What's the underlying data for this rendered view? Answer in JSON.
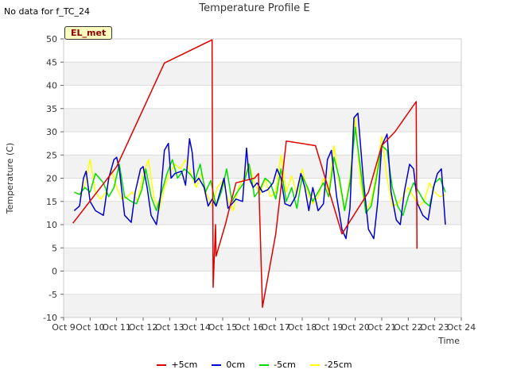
{
  "corner_note": "No data for f_TC_24",
  "site_badge": "EL_met",
  "chart_data": {
    "type": "line",
    "title": "Temperature Profile E",
    "xlabel": "Time",
    "ylabel": "Temperature (C)",
    "xlim": [
      9,
      24
    ],
    "ylim": [
      -10,
      50
    ],
    "x_ticks": [
      9,
      10,
      11,
      12,
      13,
      14,
      15,
      16,
      17,
      18,
      19,
      20,
      21,
      22,
      23,
      24
    ],
    "x_tick_labels": [
      "Oct 9",
      "Oct 10",
      "Oct 11",
      "Oct 12",
      "Oct 13",
      "Oct 14",
      "Oct 15",
      "Oct 16",
      "Oct 17",
      "Oct 18",
      "Oct 19",
      "Oct 20",
      "Oct 21",
      "Oct 22",
      "Oct 23",
      "Oct 24"
    ],
    "y_ticks": [
      -10,
      -5,
      0,
      5,
      10,
      15,
      20,
      25,
      30,
      35,
      40,
      45,
      50
    ],
    "grid": "horizontal bands",
    "legend_position": "bottom",
    "series": [
      {
        "name": "+5cm",
        "color": "#e00000",
        "x": [
          9.35,
          11.0,
          12.8,
          14.6,
          14.61,
          14.63,
          14.64,
          14.73,
          14.75,
          15.1,
          15.5,
          16.2,
          16.35,
          16.5,
          17.0,
          17.4,
          18.5,
          19.5,
          20.5,
          21.0,
          21.5,
          22.3,
          22.33
        ],
        "y": [
          10.3,
          22.5,
          44.8,
          49.8,
          30.0,
          10.0,
          -3.5,
          10.0,
          3.2,
          10.0,
          19.0,
          20.0,
          21.0,
          -7.8,
          8.0,
          28.0,
          27.0,
          8.0,
          17.0,
          27.0,
          30.0,
          36.5,
          4.8
        ]
      },
      {
        "name": "0cm",
        "color": "#0000cc",
        "x": [
          9.4,
          9.6,
          9.75,
          9.85,
          10.0,
          10.2,
          10.5,
          10.7,
          10.9,
          11.0,
          11.1,
          11.3,
          11.55,
          11.7,
          11.9,
          12.0,
          12.15,
          12.3,
          12.5,
          12.65,
          12.8,
          12.95,
          13.05,
          13.2,
          13.45,
          13.6,
          13.75,
          13.85,
          13.95,
          14.1,
          14.3,
          14.45,
          14.6,
          14.75,
          14.9,
          15.05,
          15.2,
          15.35,
          15.5,
          15.75,
          15.9,
          16.0,
          16.15,
          16.3,
          16.5,
          16.7,
          16.9,
          17.05,
          17.2,
          17.35,
          17.55,
          17.75,
          17.95,
          18.1,
          18.25,
          18.4,
          18.6,
          18.8,
          18.95,
          19.1,
          19.3,
          19.5,
          19.65,
          19.8,
          19.95,
          20.1,
          20.3,
          20.5,
          20.7,
          20.85,
          21.0,
          21.2,
          21.35,
          21.55,
          21.7,
          21.85,
          22.05,
          22.2,
          22.35,
          22.55,
          22.75,
          22.95,
          23.1,
          23.25,
          23.4
        ],
        "y": [
          13.0,
          14.0,
          20.0,
          21.5,
          15.0,
          13.0,
          12.0,
          20.0,
          24.0,
          24.5,
          22.0,
          12.0,
          10.5,
          17.0,
          22.0,
          22.5,
          18.0,
          12.0,
          10.0,
          16.0,
          26.0,
          27.5,
          20.0,
          21.0,
          21.5,
          18.5,
          28.5,
          25.5,
          19.0,
          20.0,
          18.0,
          14.0,
          15.5,
          14.0,
          17.0,
          20.0,
          13.5,
          14.5,
          15.5,
          15.0,
          26.5,
          20.0,
          18.0,
          19.0,
          17.0,
          17.5,
          19.0,
          22.0,
          20.0,
          14.5,
          14.0,
          16.0,
          21.0,
          18.0,
          13.0,
          18.0,
          13.0,
          14.5,
          24.0,
          26.0,
          16.0,
          9.0,
          7.0,
          13.5,
          33.0,
          34.0,
          20.0,
          9.0,
          7.0,
          15.0,
          27.0,
          29.5,
          17.0,
          11.0,
          10.0,
          17.0,
          23.0,
          22.0,
          14.5,
          12.0,
          11.0,
          18.0,
          21.0,
          22.0,
          10.0
        ]
      },
      {
        "name": "-5cm",
        "color": "#00dd00",
        "x": [
          9.4,
          9.6,
          9.8,
          10.0,
          10.2,
          10.5,
          10.7,
          10.9,
          11.1,
          11.3,
          11.55,
          11.75,
          11.95,
          12.1,
          12.3,
          12.5,
          12.7,
          12.9,
          13.1,
          13.3,
          13.55,
          13.75,
          13.95,
          14.15,
          14.35,
          14.55,
          14.75,
          14.95,
          15.15,
          15.35,
          15.55,
          15.8,
          16.0,
          16.2,
          16.4,
          16.6,
          16.8,
          17.0,
          17.2,
          17.4,
          17.6,
          17.8,
          18.0,
          18.2,
          18.4,
          18.6,
          18.8,
          19.0,
          19.2,
          19.4,
          19.6,
          19.8,
          20.0,
          20.2,
          20.4,
          20.6,
          20.8,
          21.0,
          21.2,
          21.4,
          21.6,
          21.8,
          22.0,
          22.2,
          22.4,
          22.6,
          22.8,
          23.0,
          23.2,
          23.4
        ],
        "y": [
          17.0,
          16.5,
          18.0,
          17.0,
          21.0,
          19.0,
          16.0,
          18.0,
          23.0,
          16.0,
          15.0,
          14.5,
          17.5,
          22.0,
          16.0,
          13.0,
          17.0,
          21.0,
          24.0,
          20.0,
          22.0,
          21.0,
          19.5,
          23.0,
          17.0,
          19.5,
          14.0,
          17.0,
          22.0,
          15.0,
          17.0,
          19.0,
          23.0,
          16.0,
          17.5,
          20.0,
          19.0,
          15.5,
          22.0,
          15.0,
          18.0,
          13.5,
          20.5,
          18.0,
          15.0,
          17.0,
          19.0,
          16.0,
          24.5,
          20.0,
          13.0,
          19.0,
          31.0,
          22.0,
          12.5,
          14.0,
          20.0,
          27.0,
          26.0,
          18.0,
          14.0,
          12.0,
          16.0,
          19.0,
          17.0,
          15.0,
          14.0,
          19.0,
          20.0,
          17.0
        ]
      },
      {
        "name": "-25cm",
        "color": "#ffff00",
        "x": [
          9.4,
          9.6,
          9.8,
          10.0,
          10.2,
          10.4,
          10.6,
          10.8,
          11.0,
          11.2,
          11.4,
          11.6,
          11.8,
          12.0,
          12.2,
          12.4,
          12.6,
          12.8,
          13.0,
          13.2,
          13.4,
          13.6,
          13.8,
          14.0,
          14.2,
          14.4,
          14.6,
          14.8,
          15.0,
          15.2,
          15.4,
          15.6,
          15.8,
          16.0,
          16.2,
          16.4,
          16.6,
          16.8,
          17.0,
          17.2,
          17.4,
          17.6,
          17.8,
          18.0,
          18.2,
          18.4,
          18.6,
          18.8,
          19.0,
          19.2,
          19.4,
          19.6,
          19.8,
          20.0,
          20.2,
          20.4,
          20.6,
          20.8,
          21.0,
          21.2,
          21.4,
          21.6,
          21.8,
          22.0,
          22.2,
          22.4,
          22.6,
          22.8,
          23.0,
          23.2,
          23.4
        ],
        "y": [
          17.0,
          16.5,
          18.5,
          24.0,
          17.0,
          15.5,
          17.0,
          22.0,
          18.0,
          15.5,
          16.0,
          17.0,
          15.0,
          21.0,
          24.0,
          16.0,
          13.0,
          18.0,
          21.0,
          23.0,
          22.0,
          24.0,
          21.0,
          18.0,
          21.0,
          16.5,
          14.0,
          18.0,
          19.5,
          15.5,
          13.0,
          18.0,
          20.0,
          23.0,
          19.0,
          16.5,
          20.0,
          16.0,
          17.0,
          25.0,
          17.0,
          20.5,
          16.5,
          22.0,
          17.0,
          14.5,
          16.0,
          20.0,
          17.0,
          27.0,
          19.0,
          13.0,
          20.0,
          33.0,
          19.0,
          13.0,
          15.0,
          21.0,
          29.0,
          20.0,
          14.0,
          14.5,
          16.0,
          18.0,
          16.0,
          14.0,
          15.0,
          19.0,
          17.0,
          16.0,
          16.5
        ]
      }
    ]
  }
}
